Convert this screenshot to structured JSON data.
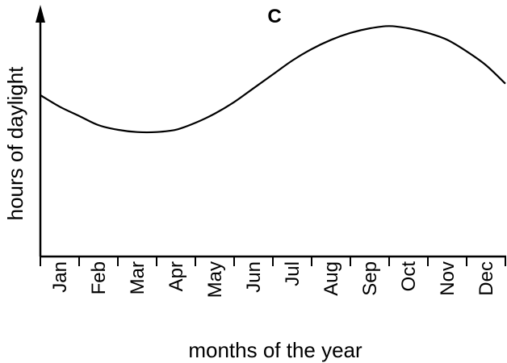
{
  "chart_data": {
    "type": "line",
    "title": "C",
    "xlabel": "months of the year",
    "ylabel": "hours of daylight",
    "categories": [
      "Jan",
      "Feb",
      "Mar",
      "Apr",
      "May",
      "Jun",
      "Jul",
      "Aug",
      "Sep",
      "Oct",
      "Nov",
      "Dec"
    ],
    "x": [
      0,
      0.5,
      1,
      1.5,
      2,
      2.5,
      3,
      3.5,
      4,
      4.5,
      5,
      5.5,
      6,
      6.5,
      7,
      7.5,
      8,
      8.5,
      9,
      9.5,
      10,
      10.5,
      11,
      11.5,
      12
    ],
    "series": [
      {
        "values": [
          0.7,
          0.65,
          0.61,
          0.57,
          0.55,
          0.54,
          0.54,
          0.55,
          0.58,
          0.62,
          0.67,
          0.73,
          0.79,
          0.85,
          0.9,
          0.94,
          0.97,
          0.99,
          1.0,
          0.99,
          0.97,
          0.94,
          0.89,
          0.83,
          0.75
        ]
      }
    ],
    "ylim": [
      0,
      1.05
    ],
    "yticks": false,
    "grid": false,
    "legend": false
  }
}
